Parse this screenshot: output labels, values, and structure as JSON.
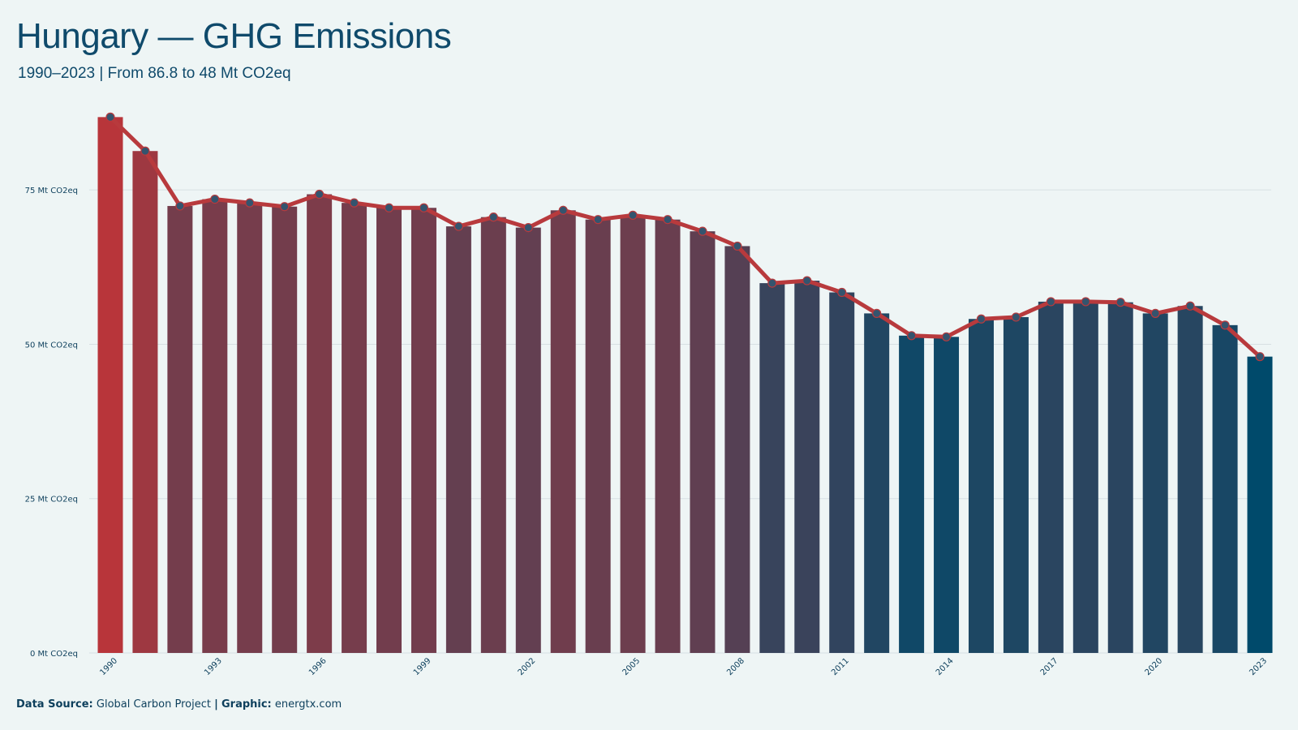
{
  "header": {
    "title": "Hungary — GHG Emissions",
    "subtitle": "1990–2023 | From 86.8 to 48 Mt CO2eq"
  },
  "footer": {
    "source_label": "Data Source:",
    "source_value": "Global Carbon Project",
    "separator": "|",
    "graphic_label": "Graphic:",
    "graphic_value": "energtx.com"
  },
  "colors": {
    "background": "#eef5f5",
    "line": "#b83a3d",
    "marker": "#34546e",
    "high_bar": "#b8353a",
    "low_bar": "#004a6b",
    "grid": "#d7e0e3"
  },
  "chart_data": {
    "type": "bar",
    "overlay": "line",
    "x": [
      1990,
      1991,
      1992,
      1993,
      1994,
      1995,
      1996,
      1997,
      1998,
      1999,
      2000,
      2001,
      2002,
      2003,
      2004,
      2005,
      2006,
      2007,
      2008,
      2009,
      2010,
      2011,
      2012,
      2013,
      2014,
      2015,
      2016,
      2017,
      2018,
      2019,
      2020,
      2021,
      2022,
      2023
    ],
    "values": [
      86.8,
      81.3,
      72.4,
      73.5,
      72.9,
      72.3,
      74.3,
      72.9,
      72.1,
      72.1,
      69.1,
      70.6,
      68.9,
      71.7,
      70.2,
      70.9,
      70.2,
      68.3,
      65.9,
      59.9,
      60.3,
      58.4,
      55.0,
      51.4,
      51.2,
      54.1,
      54.4,
      56.9,
      56.9,
      56.8,
      55.0,
      56.2,
      53.1,
      48.0
    ],
    "x_tick_labels": [
      "1990",
      "1993",
      "1996",
      "1999",
      "2002",
      "2005",
      "2008",
      "2011",
      "2014",
      "2017",
      "2020",
      "2023"
    ],
    "y_ticks": [
      0,
      25,
      50,
      75
    ],
    "y_tick_labels": [
      "0 Mt CO2eq",
      "25 Mt CO2eq",
      "50 Mt CO2eq",
      "75 Mt CO2eq"
    ],
    "ylim": [
      0,
      90
    ],
    "grid": "horizontal",
    "legend": "none",
    "xlabel": "",
    "ylabel": ""
  }
}
